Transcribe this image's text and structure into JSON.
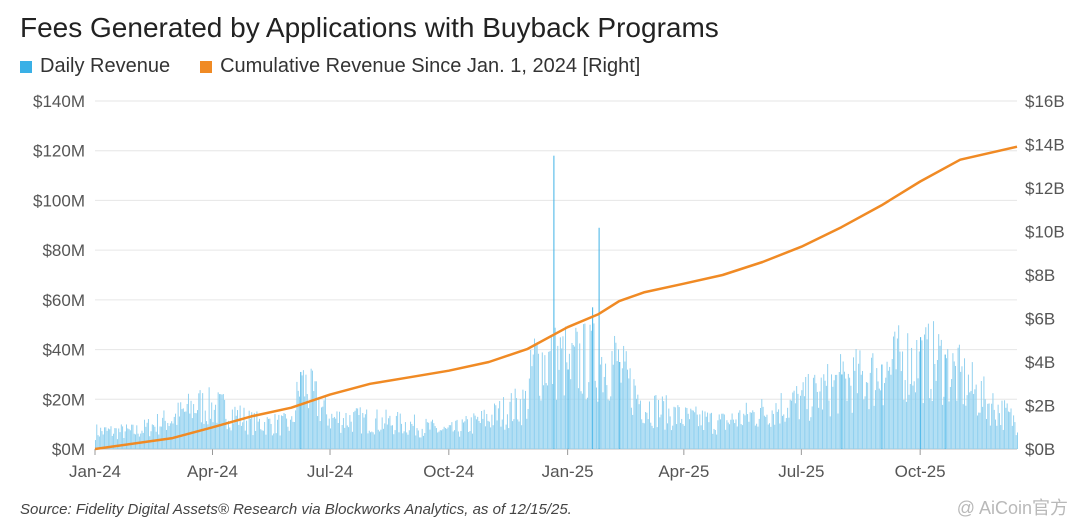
{
  "title": "Fees Generated by Applications with Buyback Programs",
  "legend": {
    "daily": "Daily Revenue",
    "cumulative": "Cumulative Revenue Since Jan. 1, 2024 [Right]"
  },
  "source": "Source: Fidelity Digital Assets® Research via Blockworks Analytics, as of 12/15/25.",
  "watermark": "@ AiCoin官方",
  "colors": {
    "daily": "#3ab0e6",
    "daily_fill": "#8fd0ef",
    "cumulative": "#f08a24",
    "grid": "#e6e6e6"
  },
  "chart_data": {
    "type": "bar+line",
    "x_range": [
      "2024-01-01",
      "2025-12-15"
    ],
    "x_ticks": [
      "Jan-24",
      "Apr-24",
      "Jul-24",
      "Oct-24",
      "Jan-25",
      "Apr-25",
      "Jul-25",
      "Oct-25"
    ],
    "y_left": {
      "label": "Daily Revenue",
      "ticks": [
        "$0M",
        "$20M",
        "$40M",
        "$60M",
        "$80M",
        "$100M",
        "$120M",
        "$140M"
      ],
      "lim": [
        0,
        140
      ],
      "unit": "$M"
    },
    "y_right": {
      "label": "Cumulative Revenue",
      "ticks": [
        "$0B",
        "$2B",
        "$4B",
        "$6B",
        "$8B",
        "$10B",
        "$12B",
        "$14B",
        "$16B"
      ],
      "lim": [
        0,
        16
      ],
      "unit": "$B"
    },
    "grid": true,
    "legend_position": "top-left",
    "daily_revenue_approx": [
      {
        "date": "2024-01-01",
        "value": 8
      },
      {
        "date": "2024-02-01",
        "value": 8
      },
      {
        "date": "2024-03-01",
        "value": 14
      },
      {
        "date": "2024-03-20",
        "value": 20
      },
      {
        "date": "2024-04-10",
        "value": 18
      },
      {
        "date": "2024-05-01",
        "value": 12
      },
      {
        "date": "2024-06-01",
        "value": 11
      },
      {
        "date": "2024-06-08",
        "value": 31
      },
      {
        "date": "2024-07-01",
        "value": 14
      },
      {
        "date": "2024-08-01",
        "value": 13
      },
      {
        "date": "2024-09-01",
        "value": 11
      },
      {
        "date": "2024-10-01",
        "value": 8
      },
      {
        "date": "2024-11-01",
        "value": 14
      },
      {
        "date": "2024-12-01",
        "value": 22
      },
      {
        "date": "2024-12-21",
        "value": 118
      },
      {
        "date": "2025-01-01",
        "value": 32
      },
      {
        "date": "2025-01-20",
        "value": 57
      },
      {
        "date": "2025-01-25",
        "value": 89
      },
      {
        "date": "2025-02-10",
        "value": 35
      },
      {
        "date": "2025-03-01",
        "value": 20
      },
      {
        "date": "2025-04-01",
        "value": 14
      },
      {
        "date": "2025-05-01",
        "value": 12
      },
      {
        "date": "2025-06-01",
        "value": 17
      },
      {
        "date": "2025-07-01",
        "value": 22
      },
      {
        "date": "2025-08-01",
        "value": 30
      },
      {
        "date": "2025-09-01",
        "value": 34
      },
      {
        "date": "2025-10-01",
        "value": 45
      },
      {
        "date": "2025-10-20",
        "value": 38
      },
      {
        "date": "2025-11-20",
        "value": 22
      },
      {
        "date": "2025-12-15",
        "value": 12
      }
    ],
    "cumulative_revenue_approx": [
      {
        "date": "2024-01-01",
        "value": 0.0
      },
      {
        "date": "2024-03-01",
        "value": 0.5
      },
      {
        "date": "2024-04-01",
        "value": 1.0
      },
      {
        "date": "2024-05-01",
        "value": 1.5
      },
      {
        "date": "2024-06-01",
        "value": 1.9
      },
      {
        "date": "2024-07-01",
        "value": 2.5
      },
      {
        "date": "2024-08-01",
        "value": 3.0
      },
      {
        "date": "2024-09-01",
        "value": 3.3
      },
      {
        "date": "2024-10-01",
        "value": 3.6
      },
      {
        "date": "2024-11-01",
        "value": 4.0
      },
      {
        "date": "2024-12-01",
        "value": 4.6
      },
      {
        "date": "2025-01-01",
        "value": 5.6
      },
      {
        "date": "2025-01-25",
        "value": 6.2
      },
      {
        "date": "2025-02-10",
        "value": 6.8
      },
      {
        "date": "2025-03-01",
        "value": 7.2
      },
      {
        "date": "2025-04-01",
        "value": 7.6
      },
      {
        "date": "2025-05-01",
        "value": 8.0
      },
      {
        "date": "2025-06-01",
        "value": 8.6
      },
      {
        "date": "2025-07-01",
        "value": 9.3
      },
      {
        "date": "2025-08-01",
        "value": 10.2
      },
      {
        "date": "2025-09-01",
        "value": 11.2
      },
      {
        "date": "2025-10-01",
        "value": 12.3
      },
      {
        "date": "2025-11-01",
        "value": 13.3
      },
      {
        "date": "2025-12-15",
        "value": 13.9
      }
    ]
  }
}
